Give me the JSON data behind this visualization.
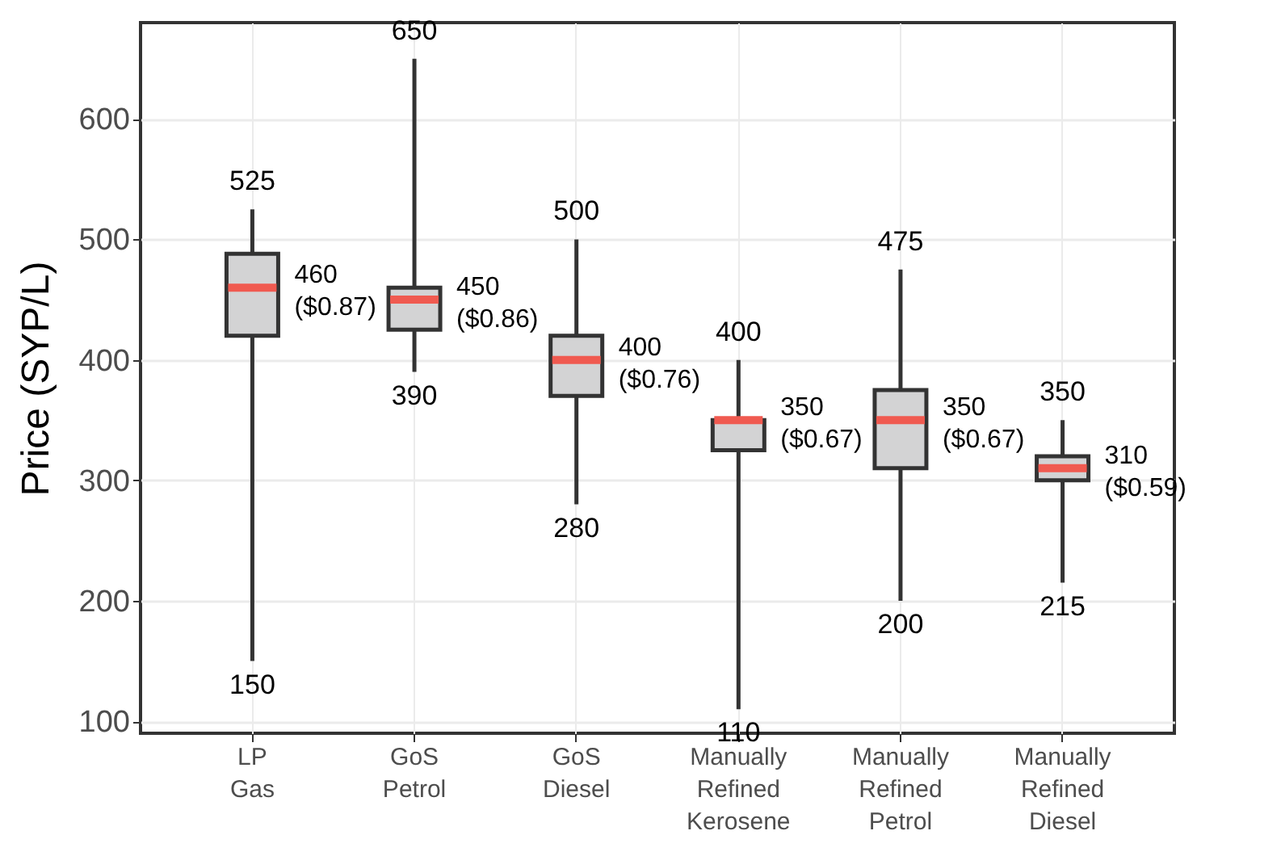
{
  "chart_data": {
    "type": "box",
    "ylabel": "Price (SYP/L)",
    "categories": [
      "LP Gas",
      "GoS Petrol",
      "GoS Diesel",
      "Manually Refined Kerosene",
      "Manually Refined Petrol",
      "Manually Refined Diesel"
    ],
    "boxes": [
      {
        "low": 150,
        "q1": 420,
        "median": 460,
        "q3": 488,
        "high": 525
      },
      {
        "low": 390,
        "q1": 425,
        "median": 450,
        "q3": 460,
        "high": 650
      },
      {
        "low": 280,
        "q1": 370,
        "median": 400,
        "q3": 420,
        "high": 500
      },
      {
        "low": 110,
        "q1": 325,
        "median": 350,
        "q3": 350,
        "high": 400
      },
      {
        "low": 200,
        "q1": 310,
        "median": 350,
        "q3": 375,
        "high": 475
      },
      {
        "low": 215,
        "q1": 300,
        "median": 310,
        "q3": 320,
        "high": 350
      }
    ],
    "color": "#d3d3d4",
    "ylim": [
      90,
      680
    ],
    "yticks": [
      100,
      200,
      300,
      400,
      500,
      600
    ],
    "grid": true,
    "annotations": [
      {
        "text": "525",
        "x": "LP Gas",
        "y": 525
      },
      {
        "text": "460 ($0.87)",
        "x": "LP Gas",
        "y": 460
      },
      {
        "text": "150",
        "x": "LP Gas",
        "y": 150
      },
      {
        "text": "650",
        "x": "GoS Petrol",
        "y": 650
      },
      {
        "text": "450 ($0.86)",
        "x": "GoS Petrol",
        "y": 450
      },
      {
        "text": "390",
        "x": "GoS Petrol",
        "y": 390
      },
      {
        "text": "500",
        "x": "GoS Diesel",
        "y": 500
      },
      {
        "text": "400 ($0.76)",
        "x": "GoS Diesel",
        "y": 400
      },
      {
        "text": "280",
        "x": "GoS Diesel",
        "y": 280
      },
      {
        "text": "400",
        "x": "Manually Refined Kerosene",
        "y": 400
      },
      {
        "text": "350 ($0.67)",
        "x": "Manually Refined Kerosene",
        "y": 350
      },
      {
        "text": "110",
        "x": "Manually Refined Kerosene",
        "y": 110
      },
      {
        "text": "475",
        "x": "Manually Refined Petrol",
        "y": 475
      },
      {
        "text": "350 ($0.67)",
        "x": "Manually Refined Petrol",
        "y": 350
      },
      {
        "text": "200",
        "x": "Manually Refined Petrol",
        "y": 200
      },
      {
        "text": "350",
        "x": "Manually Refined Diesel",
        "y": 350
      },
      {
        "text": "310 ($0.59)",
        "x": "Manually Refined Diesel",
        "y": 310
      },
      {
        "text": "215",
        "x": "Manually Refined Diesel",
        "y": 215
      }
    ]
  }
}
